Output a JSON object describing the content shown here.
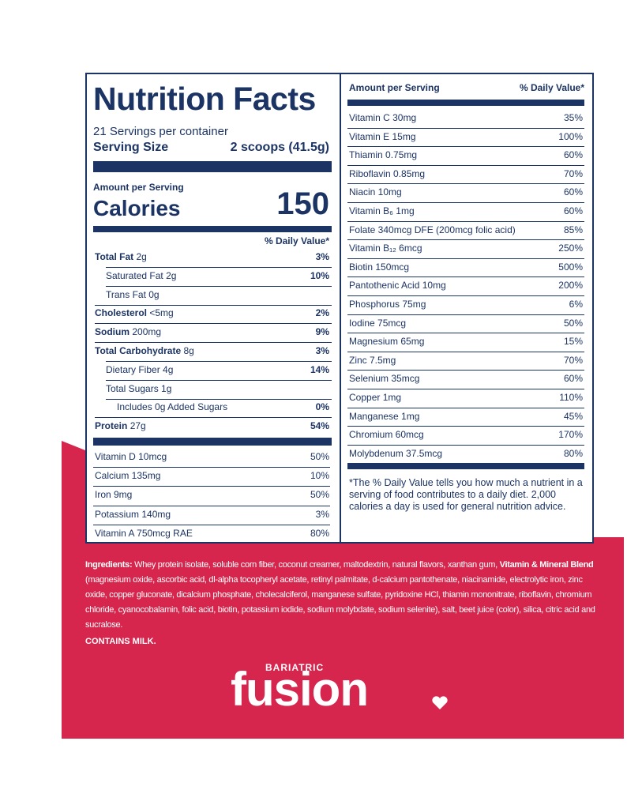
{
  "label": {
    "title": "Nutrition Facts",
    "servings": "21 Servings per container",
    "serving_size_label": "Serving Size",
    "serving_size": "2 scoops (41.5g)",
    "amount_per_serving": "Amount per Serving",
    "calories_label": "Calories",
    "calories": "150",
    "dv_header": "% Daily Value*",
    "rows": [
      {
        "name": "Total Fat",
        "amount": "2g",
        "dv": "3%"
      },
      {
        "name": "Saturated Fat",
        "amount": "2g",
        "dv": "10%"
      },
      {
        "name": "Trans Fat",
        "amount": "0g"
      },
      {
        "name": "Cholesterol",
        "amount": "<5mg",
        "dv": "2%"
      },
      {
        "name": "Sodium",
        "amount": "200mg",
        "dv": "9%"
      },
      {
        "name": "Total Carbohydrate",
        "amount": "8g",
        "dv": "3%"
      },
      {
        "name": "Dietary Fiber",
        "amount": "4g",
        "dv": "14%"
      },
      {
        "name": "Total Sugars",
        "amount": "1g"
      },
      {
        "name": "Includes 0g Added Sugars",
        "dv": "0%"
      },
      {
        "name": "Protein",
        "amount": "27g",
        "dv": "54%"
      }
    ],
    "vitamins_left": [
      {
        "name": "Vitamin D 10mcg",
        "dv": "50%"
      },
      {
        "name": "Calcium 135mg",
        "dv": "10%"
      },
      {
        "name": "Iron 9mg",
        "dv": "50%"
      },
      {
        "name": "Potassium 140mg",
        "dv": "3%"
      },
      {
        "name": "Vitamin A 750mcg RAE",
        "dv": "80%"
      }
    ],
    "right_header": {
      "amount": "Amount per Serving",
      "dv": "% Daily Value*"
    },
    "vitamins_right": [
      {
        "name": "Vitamin C 30mg",
        "dv": "35%"
      },
      {
        "name": "Vitamin E 15mg",
        "dv": "100%"
      },
      {
        "name": "Thiamin 0.75mg",
        "dv": "60%"
      },
      {
        "name": "Riboflavin 0.85mg",
        "dv": "70%"
      },
      {
        "name": "Niacin 10mg",
        "dv": "60%"
      },
      {
        "name": "Vitamin B₆ 1mg",
        "dv": "60%"
      },
      {
        "name": "Folate 340mcg DFE (200mcg folic acid)",
        "dv": "85%"
      },
      {
        "name": "Vitamin B₁₂ 6mcg",
        "dv": "250%"
      },
      {
        "name": "Biotin 150mcg",
        "dv": "500%"
      },
      {
        "name": "Pantothenic Acid 10mg",
        "dv": "200%"
      },
      {
        "name": "Phosphorus 75mg",
        "dv": "6%"
      },
      {
        "name": "Iodine 75mcg",
        "dv": "50%"
      },
      {
        "name": "Magnesium 65mg",
        "dv": "15%"
      },
      {
        "name": "Zinc 7.5mg",
        "dv": "70%"
      },
      {
        "name": "Selenium 35mcg",
        "dv": "60%"
      },
      {
        "name": "Copper 1mg",
        "dv": "110%"
      },
      {
        "name": "Manganese 1mg",
        "dv": "45%"
      },
      {
        "name": "Chromium 60mcg",
        "dv": "170%"
      },
      {
        "name": "Molybdenum 37.5mcg",
        "dv": "80%"
      }
    ],
    "footnote": "*The % Daily Value tells you how much a nutrient in a serving of food contributes to a daily diet. 2,000 calories a day is used for general nutrition advice."
  },
  "ingredients": {
    "label": "Ingredients:",
    "text1": " Whey protein isolate, soluble corn fiber, coconut creamer, maltodextrin, natural flavors, xanthan gum, ",
    "blend_label": "Vitamin & Mineral Blend",
    "text2": " (magnesium oxide, ascorbic acid, dl-alpha tocopheryl acetate, retinyl palmitate, d-calcium pantothenate, niacinamide, electrolytic iron, zinc oxide, copper gluconate, dicalcium phosphate, cholecalciferol, manganese sulfate, pyridoxine HCl, thiamin mononitrate, riboflavin, chromium chloride, cyanocobalamin, folic acid, biotin, potassium iodide, sodium molybdate, sodium selenite), salt, beet juice (color), silica, citric acid and sucralose.",
    "contains": "CONTAINS MILK."
  },
  "logo": {
    "sub": "BARIATRIC",
    "brand": "fusion"
  }
}
